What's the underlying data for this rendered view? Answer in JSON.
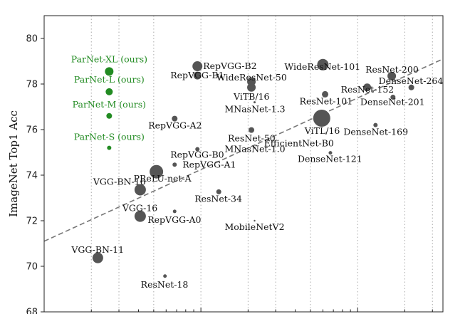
{
  "chart_data": {
    "type": "scatter",
    "title": "",
    "xlabel": "",
    "ylabel": "ImageNet Top1 Acc",
    "x_scale": "log",
    "xlim": [
      1.0,
      350
    ],
    "ylim": [
      68,
      81
    ],
    "yticks": [
      68,
      70,
      72,
      74,
      76,
      78,
      80
    ],
    "grid": "vertical-dotted",
    "trend_line": {
      "x": [
        1.0,
        350
      ],
      "y": [
        71.1,
        79.1
      ],
      "style": "dashed"
    },
    "colors": {
      "ours": "#228b22",
      "others": "#555555",
      "trend": "#777777"
    },
    "points": [
      {
        "label": "ParNet-XL (ours)",
        "x": 2.6,
        "y": 78.55,
        "size": 6,
        "group": "ours"
      },
      {
        "label": "ParNet-L (ours)",
        "x": 2.6,
        "y": 77.66,
        "size": 5,
        "group": "ours"
      },
      {
        "label": "ParNet-M (ours)",
        "x": 2.6,
        "y": 76.6,
        "size": 4,
        "group": "ours"
      },
      {
        "label": "ParNet-S (ours)",
        "x": 2.6,
        "y": 75.2,
        "size": 3,
        "group": "ours"
      },
      {
        "label": "RepVGG-B2",
        "x": 9.5,
        "y": 78.78,
        "size": 7,
        "group": "others"
      },
      {
        "label": "RepVGG-B1",
        "x": 9.5,
        "y": 78.37,
        "size": 5.5,
        "group": "others"
      },
      {
        "label": "WideResNet-50",
        "x": 21,
        "y": 78.1,
        "size": 6,
        "group": "others"
      },
      {
        "label": "ViTB/16",
        "x": 21,
        "y": 77.85,
        "size": 6,
        "group": "others"
      },
      {
        "label": "WideResNet-101",
        "x": 60,
        "y": 78.85,
        "size": 8,
        "group": "others"
      },
      {
        "label": "ResNet-200",
        "x": 165,
        "y": 78.35,
        "size": 6,
        "group": "others"
      },
      {
        "label": "DenseNet-264",
        "x": 220,
        "y": 77.85,
        "size": 4,
        "group": "others"
      },
      {
        "label": "ResNet-152",
        "x": 115,
        "y": 77.85,
        "size": 5.5,
        "group": "others"
      },
      {
        "label": "ResNet-101",
        "x": 62,
        "y": 77.55,
        "size": 4.5,
        "group": "others"
      },
      {
        "label": "DenseNet-201",
        "x": 168,
        "y": 77.42,
        "size": 3.5,
        "group": "others"
      },
      {
        "label": "MNasNet-1.3",
        "x": 22,
        "y": 77.2,
        "size": 1.5,
        "group": "others"
      },
      {
        "label": "RepVGG-A2",
        "x": 6.8,
        "y": 76.48,
        "size": 4,
        "group": "others"
      },
      {
        "label": "ViTL/16",
        "x": 59,
        "y": 76.5,
        "size": 12,
        "group": "others"
      },
      {
        "label": "DenseNet-169",
        "x": 130,
        "y": 76.2,
        "size": 3,
        "group": "others"
      },
      {
        "label": "ResNet-50",
        "x": 21,
        "y": 75.98,
        "size": 4,
        "group": "others"
      },
      {
        "label": "EfficientNet-B0",
        "x": 22.5,
        "y": 75.3,
        "size": 1.2,
        "group": "others"
      },
      {
        "label": "RepVGG-B0",
        "x": 9.5,
        "y": 75.14,
        "size": 3,
        "group": "others"
      },
      {
        "label": "MNasNet-1.0",
        "x": 22,
        "y": 75.2,
        "size": 1.2,
        "group": "others"
      },
      {
        "label": "DenseNet-121",
        "x": 67,
        "y": 74.98,
        "size": 2.5,
        "group": "others"
      },
      {
        "label": "RepVGG-A1",
        "x": 6.8,
        "y": 74.46,
        "size": 3,
        "group": "others"
      },
      {
        "label": "PReLU-net-A",
        "x": 5.2,
        "y": 74.15,
        "size": 9.5,
        "group": "others"
      },
      {
        "label": "VGG-BN-16",
        "x": 4.1,
        "y": 73.36,
        "size": 8,
        "group": "others"
      },
      {
        "label": "ResNet-34",
        "x": 13,
        "y": 73.27,
        "size": 3.5,
        "group": "others"
      },
      {
        "label": "VGG-16",
        "x": 4.1,
        "y": 72.2,
        "size": 8,
        "group": "others"
      },
      {
        "label": "RepVGG-A0",
        "x": 6.8,
        "y": 72.41,
        "size": 2.5,
        "group": "others"
      },
      {
        "label": "MobileNetV2",
        "x": 22,
        "y": 72.0,
        "size": 1.2,
        "group": "others"
      },
      {
        "label": "VGG-BN-11",
        "x": 2.2,
        "y": 70.37,
        "size": 7.5,
        "group": "others"
      },
      {
        "label": "ResNet-18",
        "x": 5.9,
        "y": 69.57,
        "size": 2.5,
        "group": "others"
      }
    ]
  }
}
